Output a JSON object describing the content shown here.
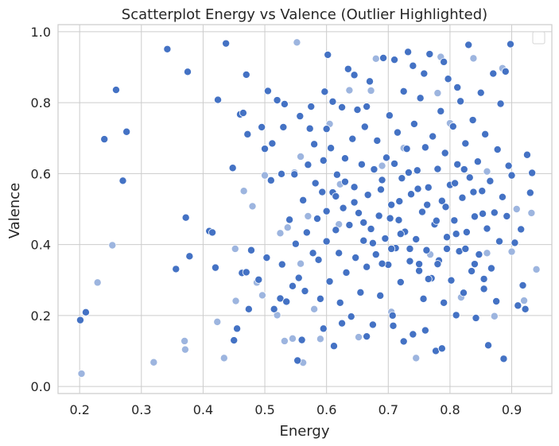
{
  "chart_data": {
    "type": "scatter",
    "title": "Scatterplot Energy vs Valence (Outlier Highlighted)",
    "xlabel": "Energy",
    "ylabel": "Valence",
    "xlim": [
      0.165,
      0.965
    ],
    "ylim": [
      -0.02,
      1.02
    ],
    "xticks": [
      "0.2",
      "0.3",
      "0.4",
      "0.5",
      "0.6",
      "0.7",
      "0.8",
      "0.9"
    ],
    "yticks": [
      "0.0",
      "0.2",
      "0.4",
      "0.6",
      "0.8",
      "1.0"
    ],
    "grid": true,
    "legend": "top-right (empty)",
    "colors": {
      "normal": "#4472c4",
      "outlier": "#9db5df",
      "grid": "#cccccc",
      "edge": "#ffffff"
    },
    "series": [
      {
        "name": "",
        "color": "#4472c4",
        "points": [
          [
            0.201,
            0.187
          ],
          [
            0.21,
            0.209
          ],
          [
            0.24,
            0.697
          ],
          [
            0.259,
            0.836
          ],
          [
            0.27,
            0.58
          ],
          [
            0.276,
            0.718
          ],
          [
            0.342,
            0.951
          ],
          [
            0.356,
            0.331
          ],
          [
            0.372,
            0.476
          ],
          [
            0.375,
            0.887
          ],
          [
            0.378,
            0.367
          ],
          [
            0.41,
            0.438
          ],
          [
            0.415,
            0.434
          ],
          [
            0.42,
            0.335
          ],
          [
            0.424,
            0.808
          ],
          [
            0.437,
            0.967
          ],
          [
            0.448,
            0.616
          ],
          [
            0.45,
            0.13
          ],
          [
            0.455,
            0.163
          ],
          [
            0.46,
            0.767
          ],
          [
            0.463,
            0.32
          ],
          [
            0.465,
            0.771
          ],
          [
            0.47,
            0.322
          ],
          [
            0.47,
            0.879
          ],
          [
            0.472,
            0.711
          ],
          [
            0.474,
            0.218
          ],
          [
            0.478,
            0.384
          ],
          [
            0.49,
            0.301
          ],
          [
            0.495,
            0.731
          ],
          [
            0.5,
            0.67
          ],
          [
            0.503,
            0.363
          ],
          [
            0.505,
            0.833
          ],
          [
            0.51,
            0.581
          ],
          [
            0.512,
            0.685
          ],
          [
            0.515,
            0.218
          ],
          [
            0.52,
            0.807
          ],
          [
            0.525,
            0.248
          ],
          [
            0.527,
            0.599
          ],
          [
            0.528,
            0.344
          ],
          [
            0.53,
            0.731
          ],
          [
            0.532,
            0.796
          ],
          [
            0.535,
            0.239
          ],
          [
            0.54,
            0.47
          ],
          [
            0.545,
            0.283
          ],
          [
            0.548,
            0.598
          ],
          [
            0.55,
            0.402
          ],
          [
            0.553,
            0.073
          ],
          [
            0.555,
            0.306
          ],
          [
            0.557,
            0.762
          ],
          [
            0.56,
            0.131
          ],
          [
            0.562,
            0.525
          ],
          [
            0.565,
            0.269
          ],
          [
            0.568,
            0.434
          ],
          [
            0.57,
            0.625
          ],
          [
            0.573,
            0.727
          ],
          [
            0.575,
            0.789
          ],
          [
            0.578,
            0.376
          ],
          [
            0.58,
            0.683
          ],
          [
            0.582,
            0.573
          ],
          [
            0.585,
            0.473
          ],
          [
            0.587,
            0.357
          ],
          [
            0.59,
            0.247
          ],
          [
            0.593,
            0.548
          ],
          [
            0.595,
            0.637
          ],
          [
            0.597,
            0.831
          ],
          [
            0.6,
            0.409
          ],
          [
            0.602,
            0.935
          ],
          [
            0.605,
            0.296
          ],
          [
            0.607,
            0.672
          ],
          [
            0.61,
            0.547
          ],
          [
            0.612,
            0.114
          ],
          [
            0.615,
            0.441
          ],
          [
            0.617,
            0.597
          ],
          [
            0.62,
            0.376
          ],
          [
            0.622,
            0.236
          ],
          [
            0.625,
            0.787
          ],
          [
            0.627,
            0.503
          ],
          [
            0.63,
            0.643
          ],
          [
            0.632,
            0.321
          ],
          [
            0.635,
            0.895
          ],
          [
            0.637,
            0.455
          ],
          [
            0.64,
            0.197
          ],
          [
            0.642,
            0.698
          ],
          [
            0.645,
            0.562
          ],
          [
            0.647,
            0.363
          ],
          [
            0.65,
            0.78
          ],
          [
            0.652,
            0.489
          ],
          [
            0.655,
            0.265
          ],
          [
            0.657,
            0.626
          ],
          [
            0.66,
            0.411
          ],
          [
            0.662,
            0.732
          ],
          [
            0.665,
            0.337
          ],
          [
            0.667,
            0.54
          ],
          [
            0.67,
            0.86
          ],
          [
            0.672,
            0.444
          ],
          [
            0.675,
            0.174
          ],
          [
            0.677,
            0.612
          ],
          [
            0.68,
            0.372
          ],
          [
            0.682,
            0.693
          ],
          [
            0.685,
            0.481
          ],
          [
            0.687,
            0.256
          ],
          [
            0.69,
            0.582
          ],
          [
            0.692,
            0.926
          ],
          [
            0.695,
            0.417
          ],
          [
            0.697,
            0.645
          ],
          [
            0.7,
            0.343
          ],
          [
            0.702,
            0.764
          ],
          [
            0.705,
            0.512
          ],
          [
            0.707,
            0.2
          ],
          [
            0.71,
            0.628
          ],
          [
            0.712,
            0.39
          ],
          [
            0.715,
            0.716
          ],
          [
            0.717,
            0.469
          ],
          [
            0.72,
            0.294
          ],
          [
            0.722,
            0.587
          ],
          [
            0.725,
            0.832
          ],
          [
            0.727,
            0.436
          ],
          [
            0.73,
            0.67
          ],
          [
            0.732,
            0.943
          ],
          [
            0.735,
            0.353
          ],
          [
            0.737,
            0.542
          ],
          [
            0.74,
            0.147
          ],
          [
            0.742,
            0.74
          ],
          [
            0.745,
            0.415
          ],
          [
            0.747,
            0.609
          ],
          [
            0.75,
            0.326
          ],
          [
            0.752,
            0.813
          ],
          [
            0.755,
            0.492
          ],
          [
            0.757,
            0.247
          ],
          [
            0.76,
            0.674
          ],
          [
            0.762,
            0.384
          ],
          [
            0.765,
            0.561
          ],
          [
            0.767,
            0.937
          ],
          [
            0.77,
            0.305
          ],
          [
            0.772,
            0.705
          ],
          [
            0.775,
            0.457
          ],
          [
            0.777,
            0.1
          ],
          [
            0.78,
            0.613
          ],
          [
            0.782,
            0.355
          ],
          [
            0.785,
            0.776
          ],
          [
            0.787,
            0.523
          ],
          [
            0.79,
            0.236
          ],
          [
            0.792,
            0.658
          ],
          [
            0.795,
            0.421
          ],
          [
            0.797,
            0.867
          ],
          [
            0.8,
            0.568
          ],
          [
            0.802,
            0.299
          ],
          [
            0.805,
            0.733
          ],
          [
            0.807,
            0.468
          ],
          [
            0.81,
            0.201
          ],
          [
            0.812,
            0.626
          ],
          [
            0.815,
            0.381
          ],
          [
            0.817,
            0.804
          ],
          [
            0.82,
            0.532
          ],
          [
            0.822,
            0.264
          ],
          [
            0.825,
            0.685
          ],
          [
            0.827,
            0.435
          ],
          [
            0.83,
            0.963
          ],
          [
            0.832,
            0.589
          ],
          [
            0.835,
            0.325
          ],
          [
            0.837,
            0.751
          ],
          [
            0.84,
            0.479
          ],
          [
            0.842,
            0.193
          ],
          [
            0.845,
            0.634
          ],
          [
            0.847,
            0.372
          ],
          [
            0.85,
            0.828
          ],
          [
            0.852,
            0.551
          ],
          [
            0.855,
            0.275
          ],
          [
            0.857,
            0.711
          ],
          [
            0.86,
            0.445
          ],
          [
            0.862,
            0.116
          ],
          [
            0.865,
            0.579
          ],
          [
            0.867,
            0.333
          ],
          [
            0.87,
            0.882
          ],
          [
            0.872,
            0.49
          ],
          [
            0.875,
            0.24
          ],
          [
            0.877,
            0.668
          ],
          [
            0.88,
            0.409
          ],
          [
            0.882,
            0.797
          ],
          [
            0.885,
            0.534
          ],
          [
            0.887,
            0.078
          ],
          [
            0.89,
            0.888
          ],
          [
            0.892,
            0.48
          ],
          [
            0.895,
            0.622
          ],
          [
            0.898,
            0.965
          ],
          [
            0.9,
            0.595
          ],
          [
            0.905,
            0.405
          ],
          [
            0.91,
            0.228
          ],
          [
            0.915,
            0.443
          ],
          [
            0.918,
            0.285
          ],
          [
            0.922,
            0.218
          ],
          [
            0.925,
            0.653
          ],
          [
            0.93,
            0.546
          ],
          [
            0.933,
            0.602
          ],
          [
            0.61,
            0.803
          ],
          [
            0.645,
            0.878
          ],
          [
            0.665,
            0.789
          ],
          [
            0.71,
            0.921
          ],
          [
            0.74,
            0.904
          ],
          [
            0.79,
            0.915
          ],
          [
            0.758,
            0.882
          ],
          [
            0.812,
            0.843
          ],
          [
            0.595,
            0.163
          ],
          [
            0.625,
            0.178
          ],
          [
            0.665,
            0.141
          ],
          [
            0.708,
            0.171
          ],
          [
            0.725,
            0.127
          ],
          [
            0.76,
            0.158
          ],
          [
            0.787,
            0.107
          ],
          [
            0.6,
            0.726
          ],
          [
            0.688,
            0.555
          ],
          [
            0.703,
            0.474
          ],
          [
            0.718,
            0.522
          ],
          [
            0.733,
            0.603
          ],
          [
            0.748,
            0.557
          ],
          [
            0.763,
            0.512
          ],
          [
            0.778,
            0.467
          ],
          [
            0.793,
            0.506
          ],
          [
            0.808,
            0.573
          ],
          [
            0.823,
            0.612
          ],
          [
            0.838,
            0.548
          ],
          [
            0.853,
            0.487
          ],
          [
            0.6,
            0.494
          ],
          [
            0.615,
            0.536
          ],
          [
            0.63,
            0.577
          ],
          [
            0.645,
            0.519
          ],
          [
            0.66,
            0.462
          ],
          [
            0.675,
            0.404
          ],
          [
            0.69,
            0.346
          ],
          [
            0.705,
            0.388
          ],
          [
            0.72,
            0.43
          ],
          [
            0.735,
            0.388
          ],
          [
            0.75,
            0.345
          ],
          [
            0.765,
            0.303
          ],
          [
            0.78,
            0.345
          ],
          [
            0.795,
            0.388
          ],
          [
            0.81,
            0.43
          ],
          [
            0.825,
            0.388
          ],
          [
            0.84,
            0.345
          ],
          [
            0.855,
            0.303
          ]
        ]
      },
      {
        "name": "",
        "color": "#9db5df",
        "points": [
          [
            0.203,
            0.036
          ],
          [
            0.229,
            0.293
          ],
          [
            0.253,
            0.398
          ],
          [
            0.32,
            0.068
          ],
          [
            0.37,
            0.128
          ],
          [
            0.371,
            0.104
          ],
          [
            0.423,
            0.182
          ],
          [
            0.434,
            0.08
          ],
          [
            0.452,
            0.388
          ],
          [
            0.453,
            0.241
          ],
          [
            0.466,
            0.551
          ],
          [
            0.48,
            0.508
          ],
          [
            0.487,
            0.293
          ],
          [
            0.496,
            0.257
          ],
          [
            0.5,
            0.595
          ],
          [
            0.52,
            0.201
          ],
          [
            0.525,
            0.432
          ],
          [
            0.532,
            0.128
          ],
          [
            0.537,
            0.448
          ],
          [
            0.545,
            0.135
          ],
          [
            0.552,
            0.97
          ],
          [
            0.558,
            0.648
          ],
          [
            0.562,
            0.067
          ],
          [
            0.57,
            0.48
          ],
          [
            0.58,
            0.218
          ],
          [
            0.59,
            0.134
          ],
          [
            0.605,
            0.74
          ],
          [
            0.622,
            0.57
          ],
          [
            0.637,
            0.835
          ],
          [
            0.652,
            0.139
          ],
          [
            0.672,
            0.834
          ],
          [
            0.68,
            0.924
          ],
          [
            0.705,
            0.21
          ],
          [
            0.725,
            0.672
          ],
          [
            0.745,
            0.08
          ],
          [
            0.768,
            0.372
          ],
          [
            0.785,
            0.929
          ],
          [
            0.8,
            0.742
          ],
          [
            0.818,
            0.251
          ],
          [
            0.838,
            0.925
          ],
          [
            0.86,
            0.376
          ],
          [
            0.872,
            0.198
          ],
          [
            0.885,
            0.897
          ],
          [
            0.9,
            0.38
          ],
          [
            0.92,
            0.242
          ],
          [
            0.932,
            0.489
          ],
          [
            0.94,
            0.33
          ],
          [
            0.908,
            0.5
          ],
          [
            0.86,
            0.606
          ],
          [
            0.78,
            0.827
          ],
          [
            0.69,
            0.622
          ],
          [
            0.62,
            0.457
          ],
          [
            0.558,
            0.346
          ],
          [
            0.548,
            0.603
          ]
        ]
      }
    ]
  }
}
